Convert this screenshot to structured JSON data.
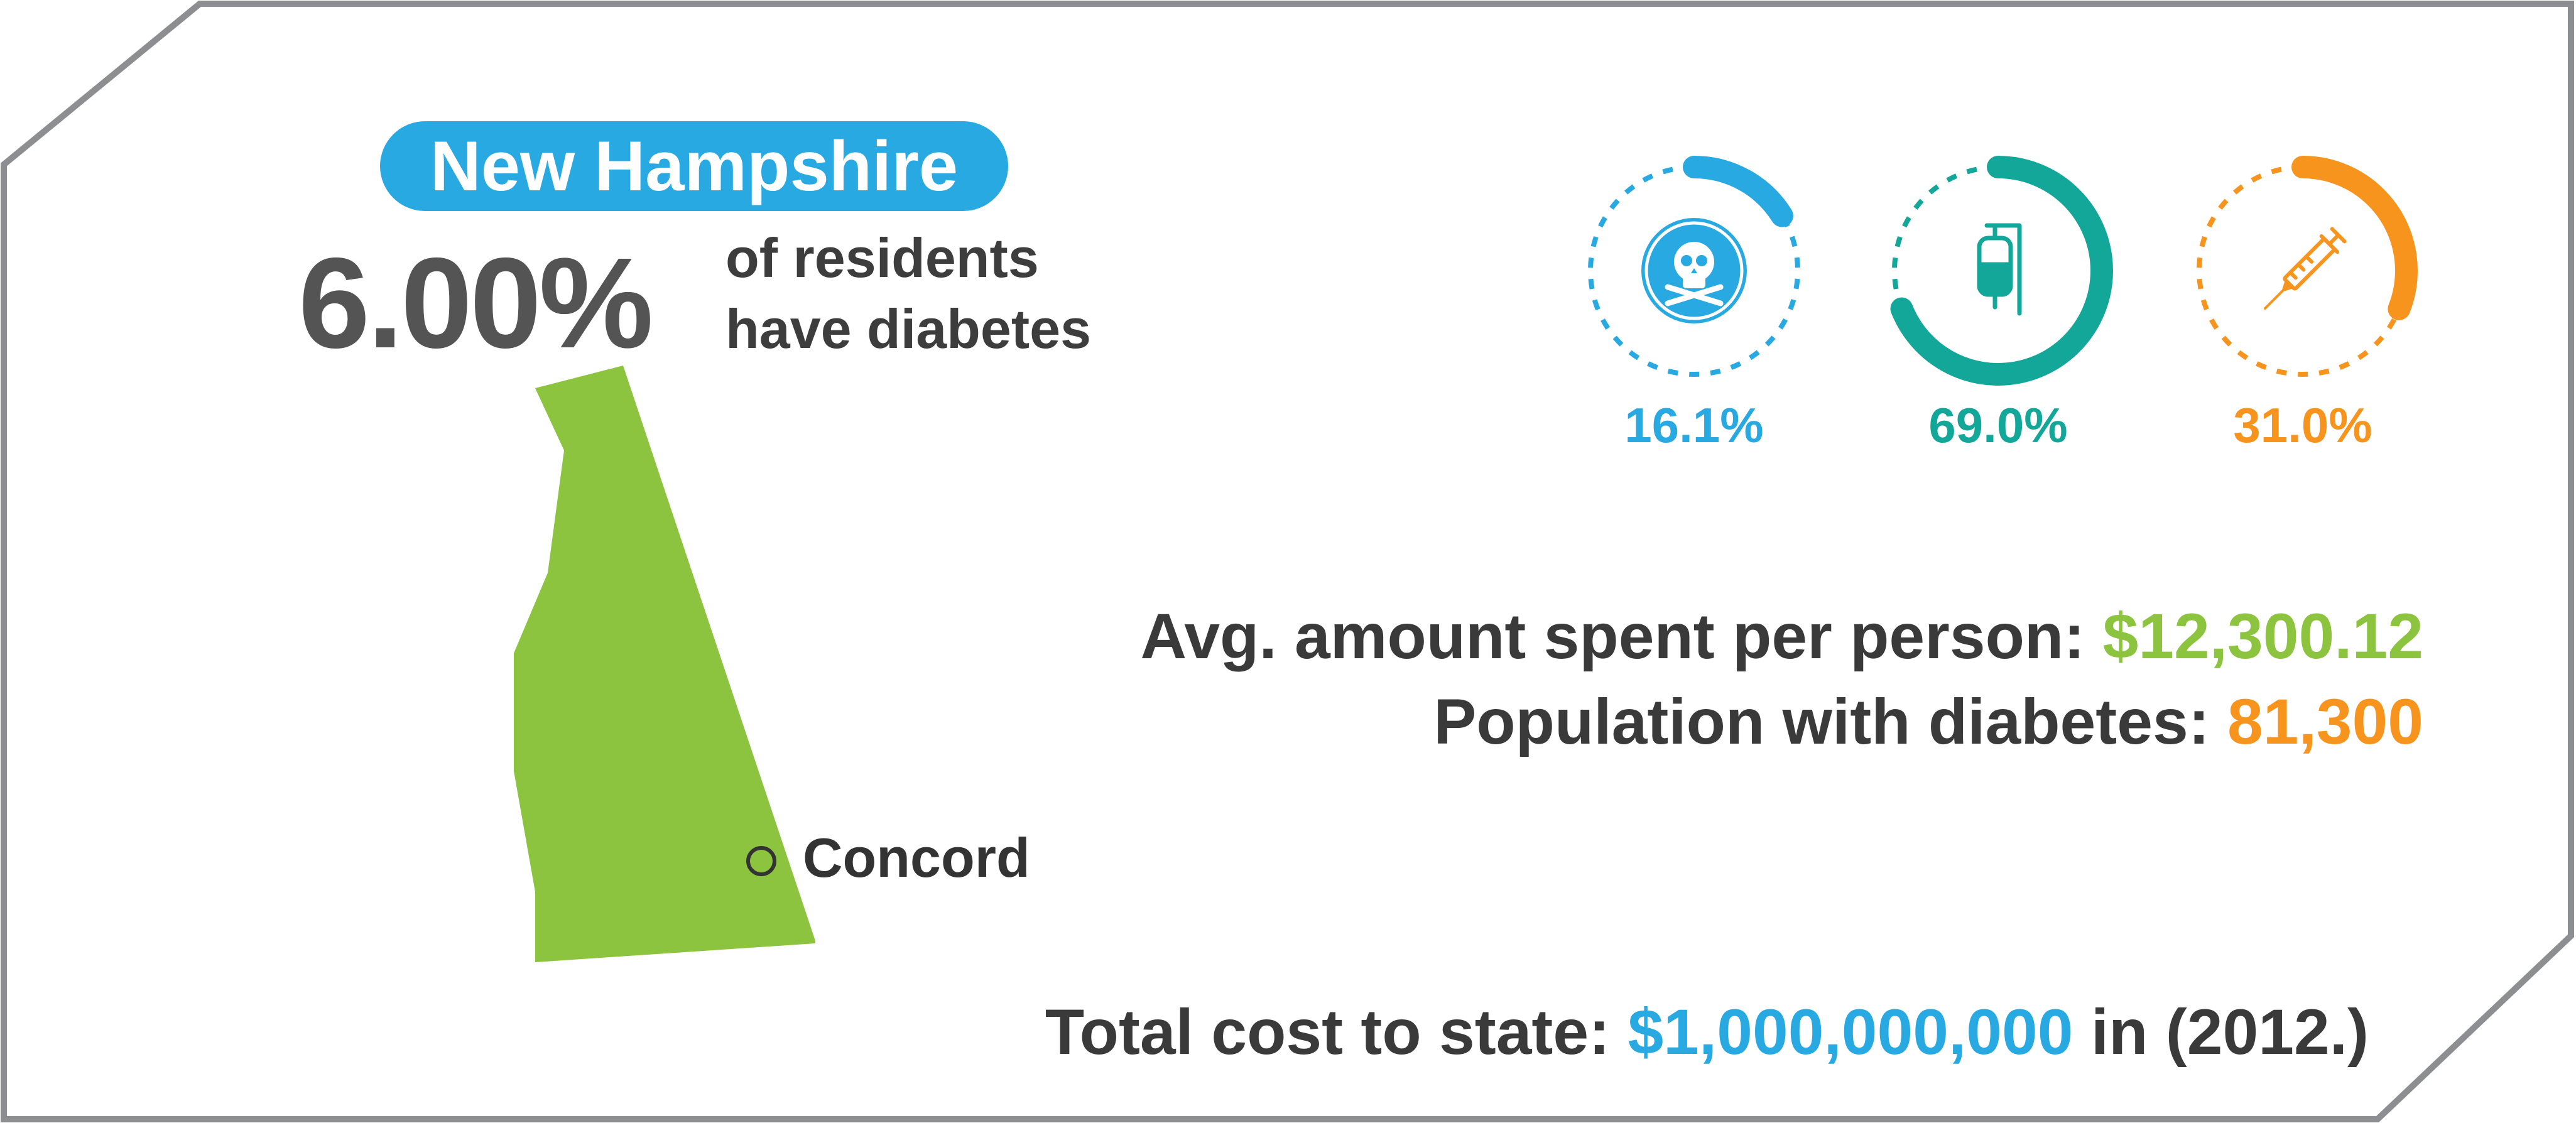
{
  "state_name": "New Hampshire",
  "headline": {
    "percent": "6.00%",
    "text_line1": "of residents",
    "text_line2": "have diabetes"
  },
  "map": {
    "city": "Concord",
    "state_color": "#8cc43f"
  },
  "rings": [
    {
      "icon": "skull-crossbones-icon",
      "percent_label": "16.1%",
      "value": 16.1,
      "color": "#29a9e1"
    },
    {
      "icon": "iv-bag-icon",
      "percent_label": "69.0%",
      "value": 69.0,
      "color": "#13a79a"
    },
    {
      "icon": "syringe-icon",
      "percent_label": "31.0%",
      "value": 31.0,
      "color": "#f7941d"
    }
  ],
  "stats": {
    "avg_label": "Avg. amount spent per person:",
    "avg_value": "$12,300.12",
    "pop_label": "Population with diabetes:",
    "pop_value": "81,300",
    "total_label": "Total cost to state:",
    "total_value": "$1,000,000,000",
    "total_suffix": "in (2012.)"
  },
  "colors": {
    "blue": "#29a9e1",
    "teal": "#13a79a",
    "orange": "#f7941d",
    "green": "#8cc43f",
    "frame": "#8d8e91"
  }
}
